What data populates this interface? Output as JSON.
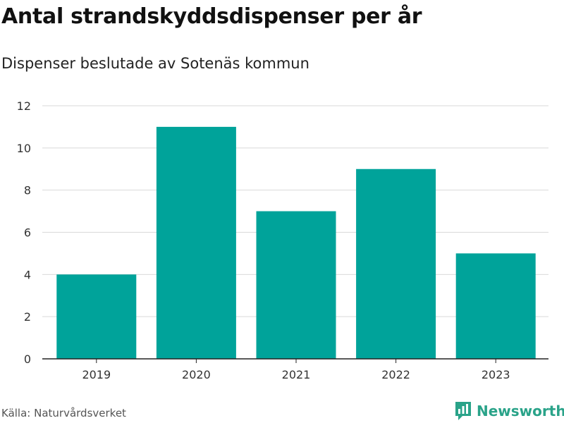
{
  "title": "Antal strandskyddsdispenser per år",
  "subtitle": "Dispenser beslutade av Sotenäs kommun",
  "source": "Källa: Naturvårdsverket",
  "brand": "Newsworthy",
  "colors": {
    "bar": "#00a39a",
    "grid": "#d9d9d9",
    "axis": "#222222",
    "brand": "#2aa389"
  },
  "chart_data": {
    "type": "bar",
    "categories": [
      "2019",
      "2020",
      "2021",
      "2022",
      "2023"
    ],
    "values": [
      4,
      11,
      7,
      9,
      5
    ],
    "title": "Antal strandskyddsdispenser per år",
    "subtitle": "Dispenser beslutade av Sotenäs kommun",
    "xlabel": "",
    "ylabel": "",
    "ylim": [
      0,
      12
    ],
    "yticks": [
      "0",
      "2",
      "4",
      "6",
      "8",
      "10",
      "12"
    ],
    "grid": true,
    "legend": "none"
  }
}
